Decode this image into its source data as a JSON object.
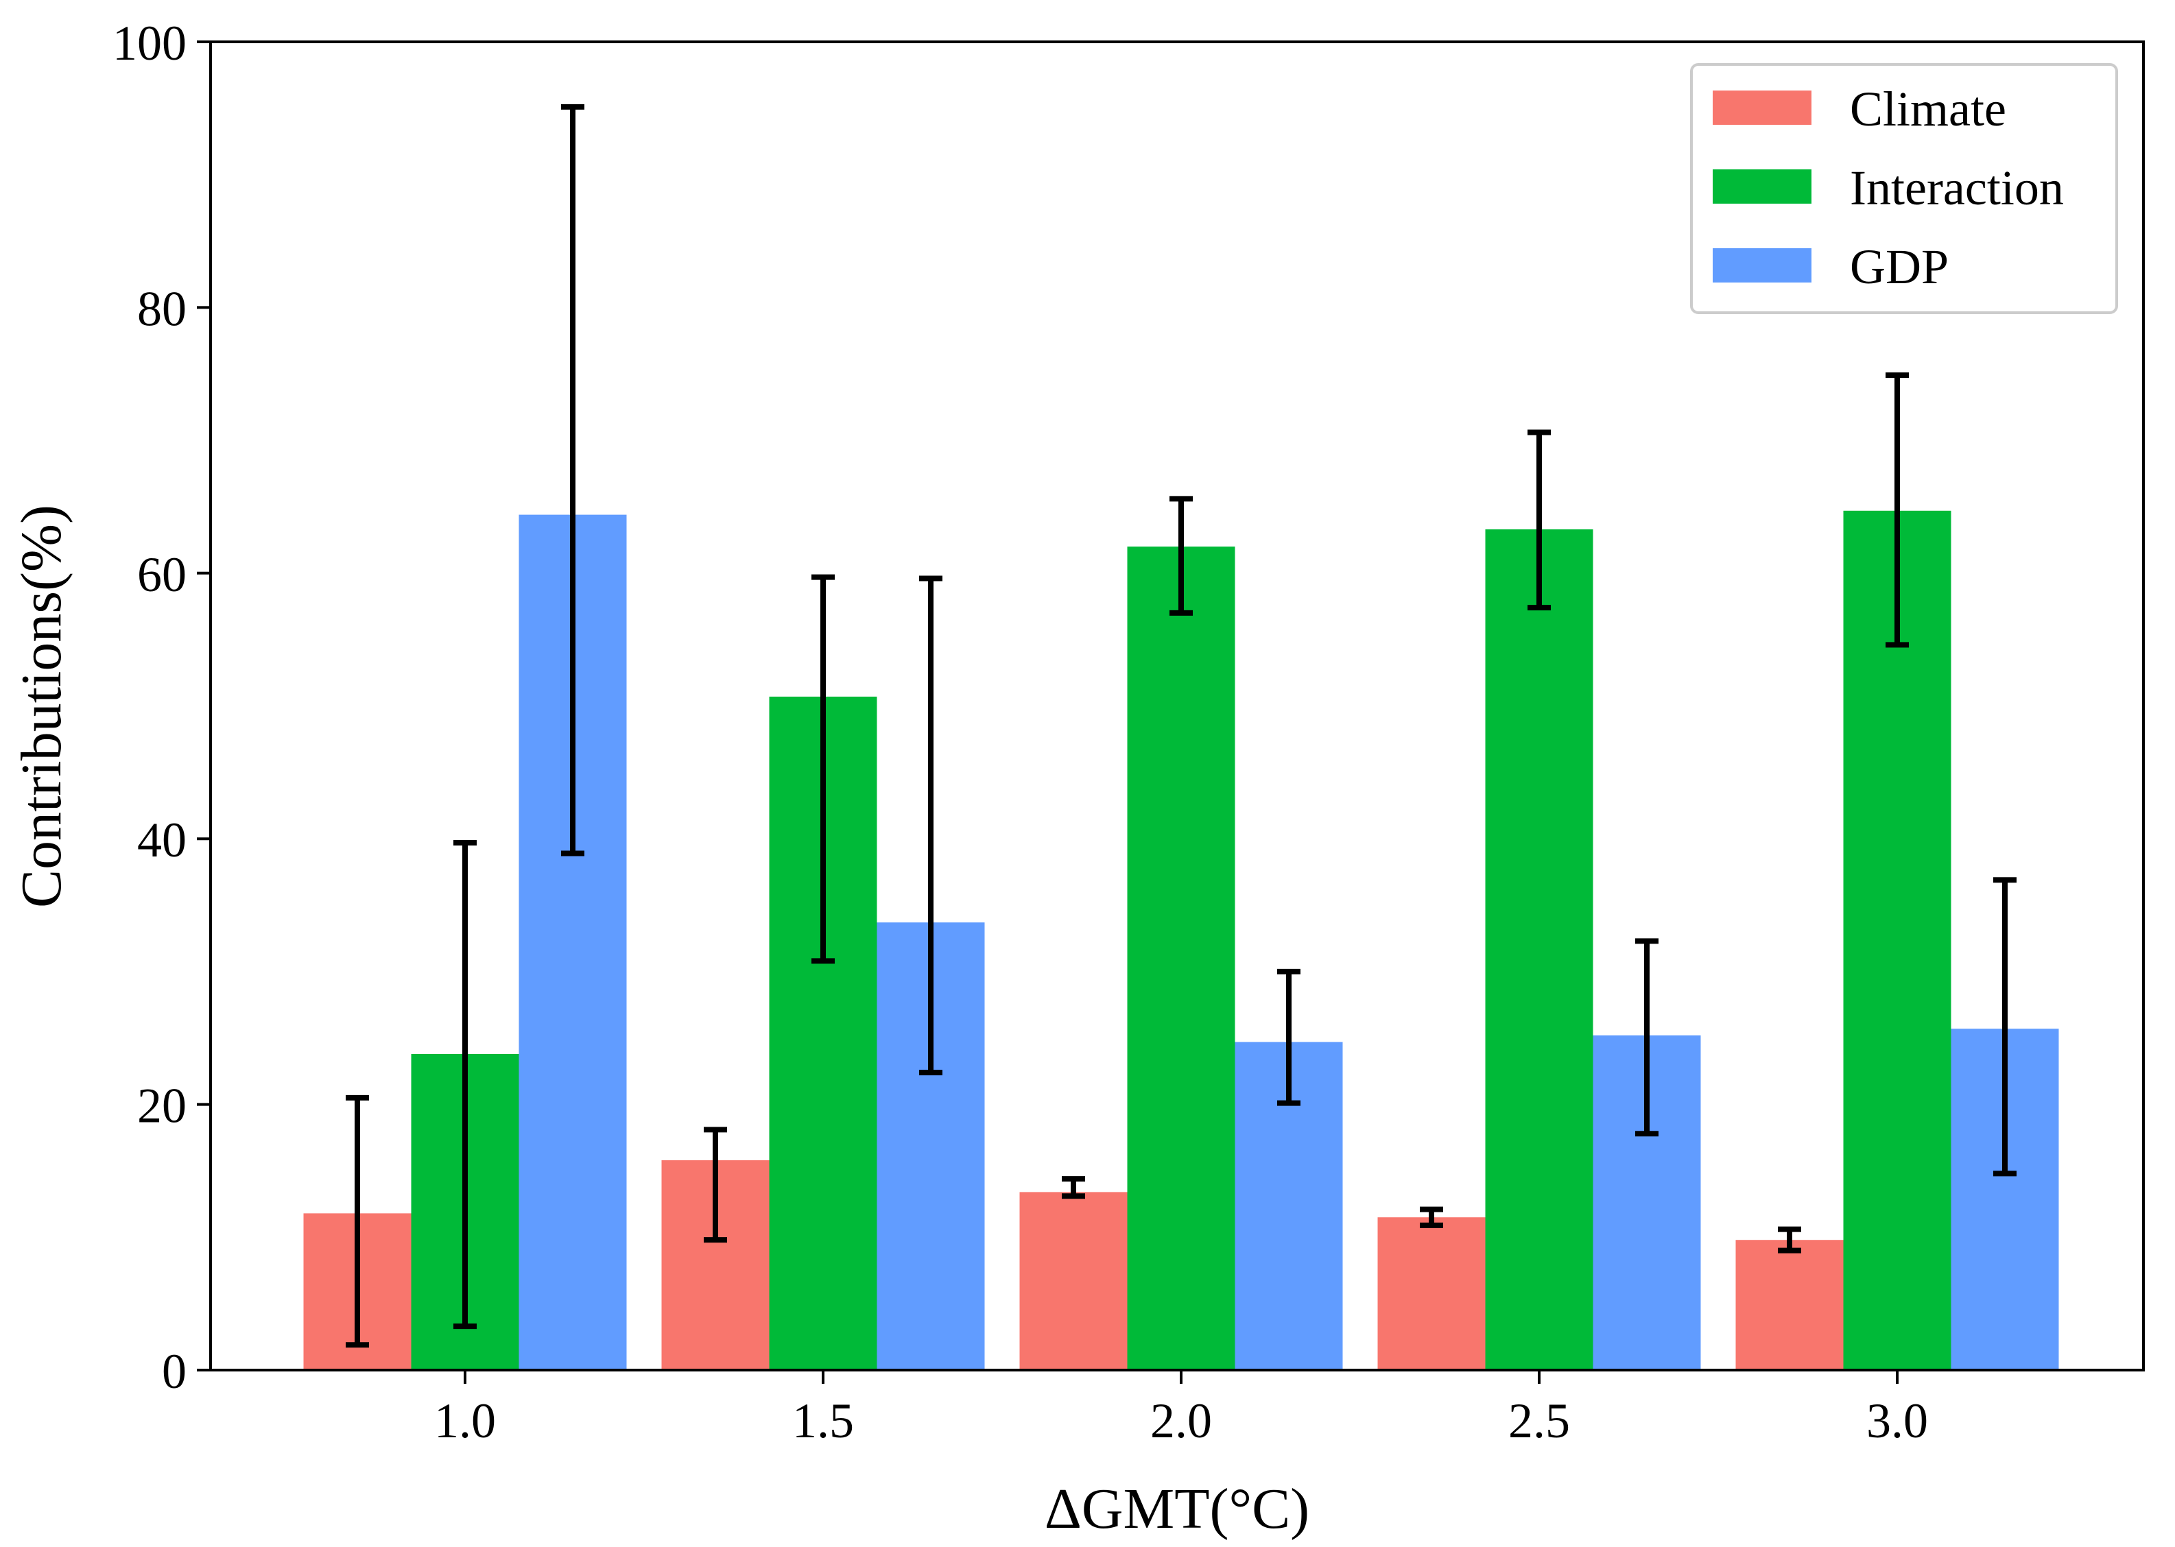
{
  "chart_data": {
    "type": "bar",
    "title": "",
    "xlabel": "ΔGMT(°C)",
    "ylabel": "Contributions(%)",
    "categories": [
      "1.0",
      "1.5",
      "2.0",
      "2.5",
      "3.0"
    ],
    "ylim": [
      0,
      100
    ],
    "yticks": [
      "0",
      "20",
      "40",
      "60",
      "80",
      "100"
    ],
    "grid": false,
    "legend_position": "top-right",
    "series": [
      {
        "name": "Climate",
        "color": "#F8766D",
        "values": [
          11.8,
          15.8,
          13.4,
          11.5,
          9.8
        ],
        "error_low": [
          1.9,
          9.8,
          13.1,
          10.9,
          9.0
        ],
        "error_high": [
          20.5,
          18.1,
          14.4,
          12.1,
          10.6
        ]
      },
      {
        "name": "Interaction",
        "color": "#00BA38",
        "values": [
          23.8,
          50.7,
          62.0,
          63.3,
          64.7
        ],
        "error_low": [
          3.3,
          30.8,
          57.0,
          57.4,
          54.6
        ],
        "error_high": [
          39.7,
          59.7,
          65.6,
          70.6,
          74.9
        ]
      },
      {
        "name": "GDP",
        "color": "#619CFF",
        "values": [
          64.4,
          33.7,
          24.7,
          25.2,
          25.7
        ],
        "error_low": [
          38.9,
          22.4,
          20.1,
          17.8,
          14.8
        ],
        "error_high": [
          95.1,
          59.6,
          30.0,
          32.3,
          36.9
        ]
      }
    ]
  }
}
